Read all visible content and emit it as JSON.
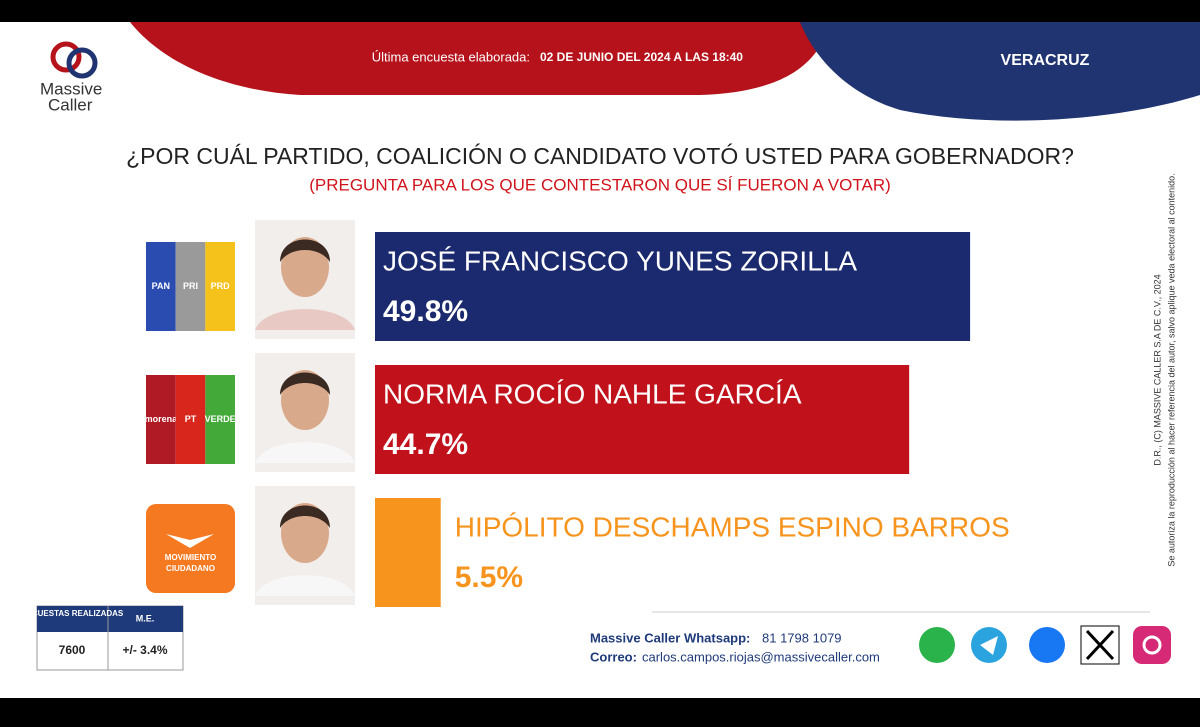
{
  "header": {
    "brand": [
      "Massive",
      "Caller"
    ],
    "survey_label": "Última encuesta elaborada:",
    "survey_date": "02 DE JUNIO DEL 2024 A LAS 18:40",
    "region": "VERACRUZ"
  },
  "chart_data": {
    "type": "bar",
    "title": "¿POR CUÁL PARTIDO, COALICIÓN O CANDIDATO VOTÓ USTED PARA GOBERNADOR?",
    "subtitle": "(PREGUNTA PARA LOS QUE CONTESTARON QUE SÍ FUERON A VOTAR)",
    "categories": [
      "JOSÉ FRANCISCO YUNES ZORILLA",
      "NORMA ROCÍO NAHLE GARCÍA",
      "HIPÓLITO DESCHAMPS ESPINO BARROS"
    ],
    "values": [
      49.8,
      44.7,
      5.5
    ],
    "value_labels": [
      "49.8%",
      "44.7%",
      "5.5%"
    ],
    "colors": [
      "#1b2a6e",
      "#c1121c",
      "#f7941d"
    ],
    "parties": [
      [
        "PAN",
        "PRI",
        "PRD"
      ],
      [
        "morena",
        "PT",
        "VERDE"
      ],
      [
        "MOVIMIENTO",
        "CIUDADANO"
      ]
    ]
  },
  "side_note": [
    "D.R., (C) MASSIVE CALLER S.A DE C.V., 2024",
    "Se autoriza la reproducción al hacer referencia del autor, salvo aplique veda electoral al contenido."
  ],
  "table": {
    "header": [
      "ENCUESTAS REALIZADAS",
      "M.E."
    ],
    "row": [
      7600,
      "+/- 3.4%"
    ]
  },
  "footer": {
    "whatsapp_label": "Massive Caller Whatsapp:",
    "whatsapp": "81 1798 1079",
    "email_label": "Correo:",
    "email": "carlos.campos.riojas@massivecaller.com"
  }
}
